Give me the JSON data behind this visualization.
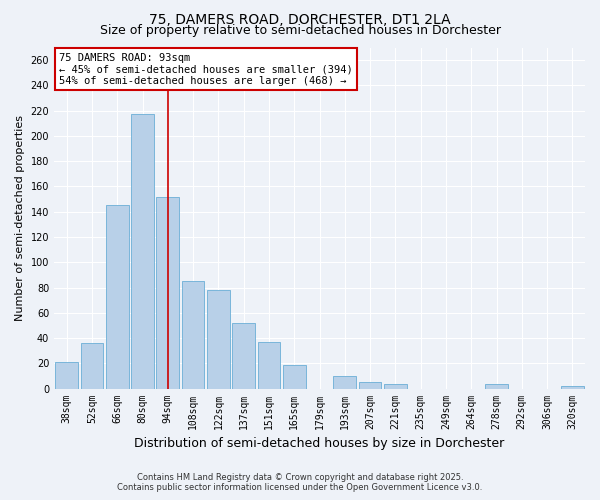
{
  "title": "75, DAMERS ROAD, DORCHESTER, DT1 2LA",
  "subtitle": "Size of property relative to semi-detached houses in Dorchester",
  "xlabel": "Distribution of semi-detached houses by size in Dorchester",
  "ylabel": "Number of semi-detached properties",
  "bar_labels": [
    "38sqm",
    "52sqm",
    "66sqm",
    "80sqm",
    "94sqm",
    "108sqm",
    "122sqm",
    "137sqm",
    "151sqm",
    "165sqm",
    "179sqm",
    "193sqm",
    "207sqm",
    "221sqm",
    "235sqm",
    "249sqm",
    "264sqm",
    "278sqm",
    "292sqm",
    "306sqm",
    "320sqm"
  ],
  "bar_values": [
    21,
    36,
    145,
    217,
    152,
    85,
    78,
    52,
    37,
    19,
    0,
    10,
    5,
    4,
    0,
    0,
    0,
    4,
    0,
    0,
    2
  ],
  "bar_color": "#b8d0e8",
  "bar_edge_color": "#6baed6",
  "vline_x": 4,
  "annotation_title": "75 DAMERS ROAD: 93sqm",
  "annotation_line1": "← 45% of semi-detached houses are smaller (394)",
  "annotation_line2": "54% of semi-detached houses are larger (468) →",
  "annotation_box_color": "#ffffff",
  "annotation_box_edge_color": "#cc0000",
  "vline_color": "#cc0000",
  "ylim": [
    0,
    270
  ],
  "yticks": [
    0,
    20,
    40,
    60,
    80,
    100,
    120,
    140,
    160,
    180,
    200,
    220,
    240,
    260
  ],
  "footnote1": "Contains HM Land Registry data © Crown copyright and database right 2025.",
  "footnote2": "Contains public sector information licensed under the Open Government Licence v3.0.",
  "background_color": "#eef2f8",
  "grid_color": "#ffffff",
  "title_fontsize": 10,
  "subtitle_fontsize": 9,
  "tick_fontsize": 7,
  "ylabel_fontsize": 8,
  "xlabel_fontsize": 9,
  "annotation_fontsize": 7.5,
  "footnote_fontsize": 6
}
